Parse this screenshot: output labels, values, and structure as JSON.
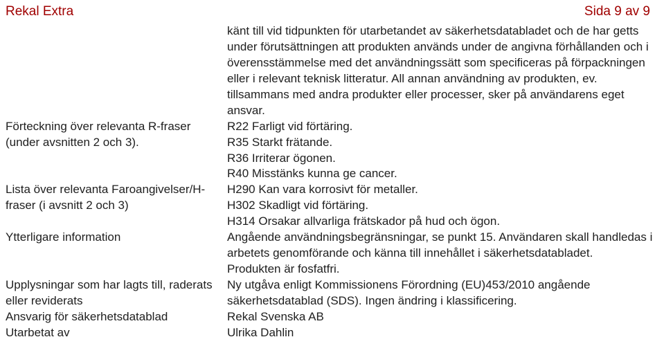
{
  "header": {
    "left": "Rekal Extra",
    "right": "Sida 9 av 9"
  },
  "rows": [
    {
      "left": "",
      "right": "känt till vid tidpunkten för utarbetandet av säkerhetsdatabladet och de har getts under förutsättningen att produkten används under de angivna förhållanden och i överensstämmelse med det användningssätt som specificeras på förpackningen eller i relevant teknisk litteratur. All annan användning av produkten, ev. tillsammans med andra produkter eller processer, sker på användarens eget ansvar."
    },
    {
      "left": "Förteckning över relevanta R-fraser (under avsnitten 2 och 3).",
      "right_lines": [
        "R22 Farligt vid förtäring.",
        "R35 Starkt frätande.",
        "R36 Irriterar ögonen.",
        "R40 Misstänks kunna ge cancer."
      ]
    },
    {
      "left": "Lista över relevanta Faroangivelser/H-fraser (i avsnitt 2 och 3)",
      "right_lines": [
        "H290 Kan vara korrosivt för metaller.",
        "H302 Skadligt vid förtäring.",
        "H314 Orsakar allvarliga frätskador på hud och ögon."
      ]
    },
    {
      "left": "Ytterligare information",
      "right_lines": [
        "Angående användningsbegränsningar, se punkt 15. Användaren skall handledas i arbetets genomförande och känna till innehållet i säkerhetsdatabladet.",
        "Produkten är fosfatfri."
      ]
    },
    {
      "left": "Upplysningar som har lagts till, raderats eller reviderats",
      "right": "Ny utgåva enligt Kommissionens Förordning (EU)453/2010 angående säkerhetsdatablad (SDS). Ingen ändring i klassificering."
    },
    {
      "left": "Ansvarig för säkerhetsdatablad",
      "right": "Rekal Svenska AB"
    },
    {
      "left": "Utarbetat av",
      "right": "Ulrika Dahlin"
    }
  ]
}
